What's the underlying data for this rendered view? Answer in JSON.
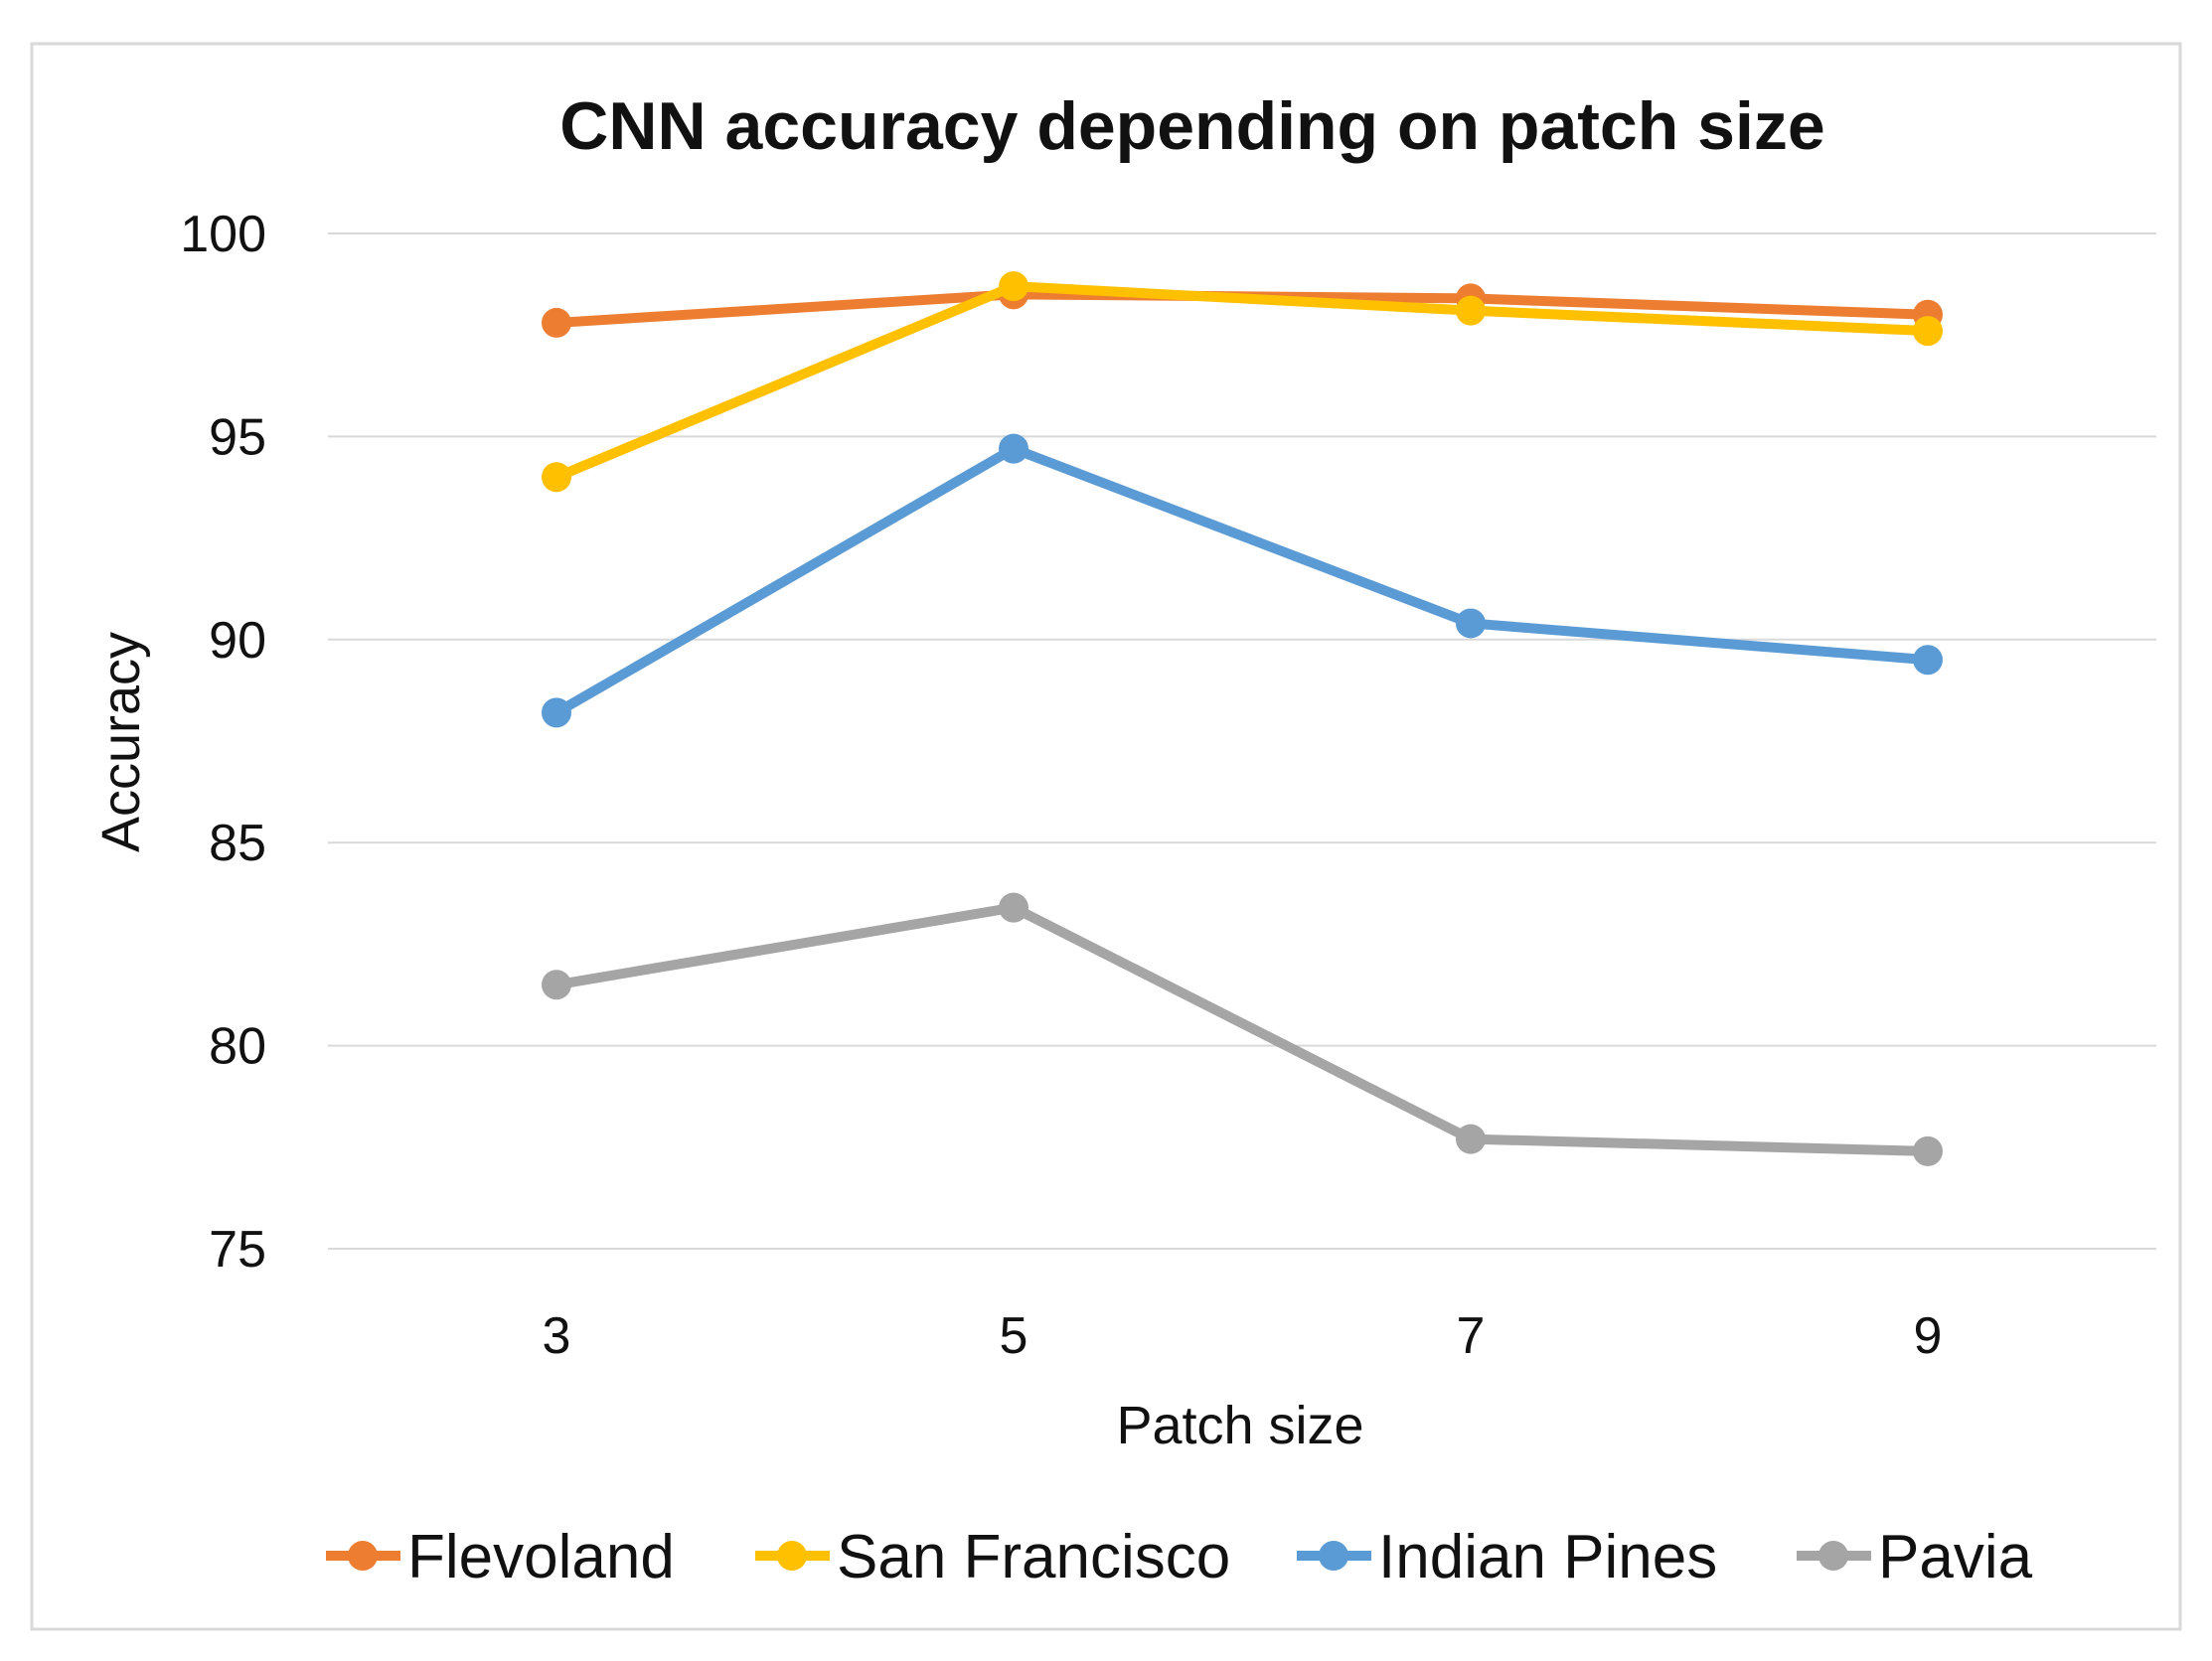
{
  "chart_data": {
    "type": "line",
    "title": "CNN accuracy depending on patch size",
    "xlabel": "Patch size",
    "ylabel": "Accuracy",
    "categories": [
      "3",
      "5",
      "7",
      "9"
    ],
    "ylim": [
      75,
      100
    ],
    "yticks": [
      75,
      80,
      85,
      90,
      95,
      100
    ],
    "grid": true,
    "legend_position": "bottom",
    "series": [
      {
        "name": "Flevoland",
        "color": "#ED7D31",
        "values": [
          97.8,
          98.5,
          98.4,
          98.0
        ]
      },
      {
        "name": "San Francisco",
        "color": "#FFC000",
        "values": [
          94.0,
          98.7,
          98.1,
          97.6
        ]
      },
      {
        "name": "Indian Pines",
        "color": "#5B9BD5",
        "values": [
          88.2,
          94.7,
          90.4,
          89.5
        ]
      },
      {
        "name": "Pavia",
        "color": "#A5A5A5",
        "values": [
          81.5,
          83.4,
          77.7,
          77.4
        ]
      }
    ]
  }
}
